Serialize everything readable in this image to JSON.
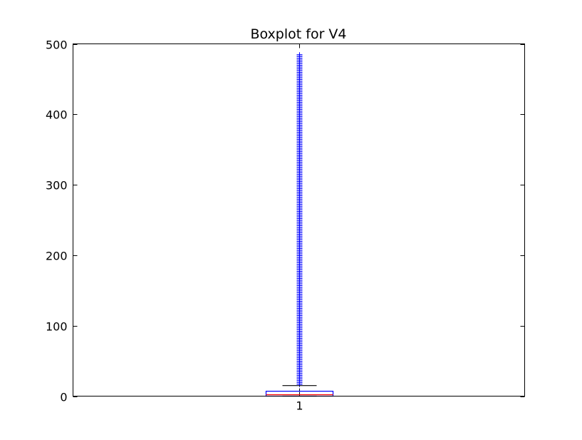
{
  "chart_data": {
    "type": "boxplot",
    "title": "Boxplot for V4",
    "xlabel": "",
    "ylabel": "",
    "ylim": [
      0,
      500
    ],
    "yticks": [
      0,
      100,
      200,
      300,
      400,
      500
    ],
    "categories": [
      "1"
    ],
    "boxes": [
      {
        "category": "1",
        "whisker_low": 0,
        "q1": 0,
        "median": 2,
        "q3": 7,
        "whisker_high": 15,
        "outlier_min": 17,
        "outlier_max": 484,
        "outlier_step": 2.5
      }
    ],
    "grid": false,
    "legend": "none",
    "colors": {
      "box": "#0000ff",
      "median": "#ff0000",
      "whisker": "#000000",
      "outlier": "#0000ff",
      "axes": "#000000"
    }
  }
}
